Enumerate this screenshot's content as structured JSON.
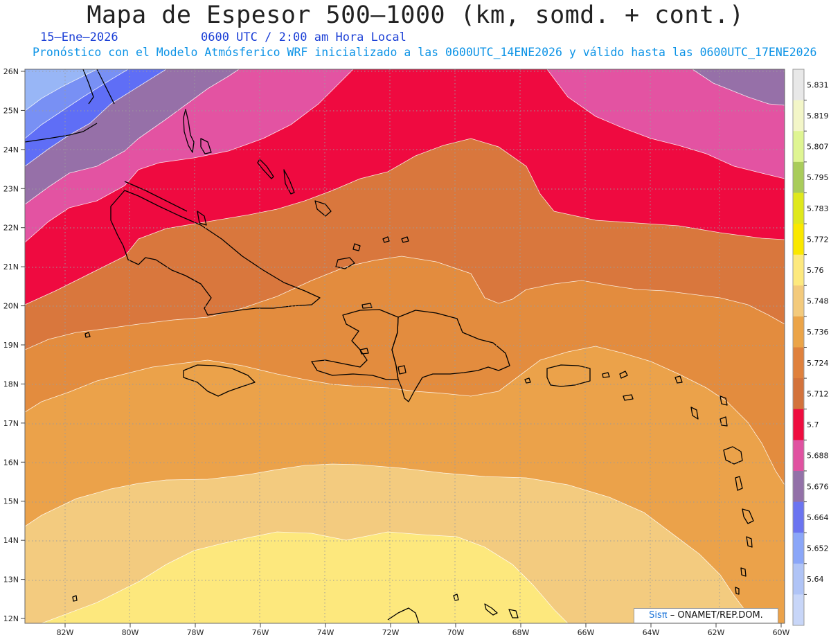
{
  "title": "Mapa de Espesor 500–1000 (km, somd. + cont.)",
  "date_label": "15–Ene–2026",
  "time_label": "0600 UTC / 2:00 am Hora Local",
  "subtitle": "Pronóstico con el Modelo Atmósferico WRF inicializado a las 0600UTC_14ENE2026 y válido hasta las  0600UTC_17ENE2026",
  "credit": {
    "brand": "Sisπ",
    "text": "– ONAMET/REP.DOM."
  },
  "lat_labels": [
    "26N",
    "25N",
    "24N",
    "23N",
    "22N",
    "21N",
    "20N",
    "19N",
    "18N",
    "17N",
    "16N",
    "15N",
    "14N",
    "13N",
    "12N"
  ],
  "lon_labels": [
    "82W",
    "80W",
    "78W",
    "76W",
    "74W",
    "72W",
    "70W",
    "68W",
    "66W",
    "64W",
    "62W",
    "60W"
  ],
  "colorbar": {
    "levels": [
      "5.831",
      "5.819",
      "5.807",
      "5.795",
      "5.783",
      "5.772",
      "5.76",
      "5.748",
      "5.736",
      "5.724",
      "5.712",
      "5.7",
      "5.688",
      "5.676",
      "5.664",
      "5.652",
      "5.64"
    ],
    "colors": [
      "#e8e8e8",
      "#f3f6c8",
      "#dff592",
      "#a9cc5a",
      "#dfe81c",
      "#fae800",
      "#fde97e",
      "#f3ca7c",
      "#eba448",
      "#df813d",
      "#d3733c",
      "#ee0d3f",
      "#e052a1",
      "#9371a8",
      "#6b74f0",
      "#8aa6f8",
      "#b0c4f6",
      "#c8d6f8"
    ]
  },
  "field_colors": {
    "blue_light": "#98b6f6",
    "blue_mid": "#7890f4",
    "blue_dark": "#5f6ef6",
    "purple": "#9670a8",
    "pink": "#e353a2",
    "red": "#ef0a40",
    "orange_dark": "#d9773d",
    "orange": "#e38c3e",
    "orange_light": "#eba24a",
    "tan": "#f3cb7f",
    "yellow_light": "#fde87d",
    "yellow": "#fbe800"
  }
}
